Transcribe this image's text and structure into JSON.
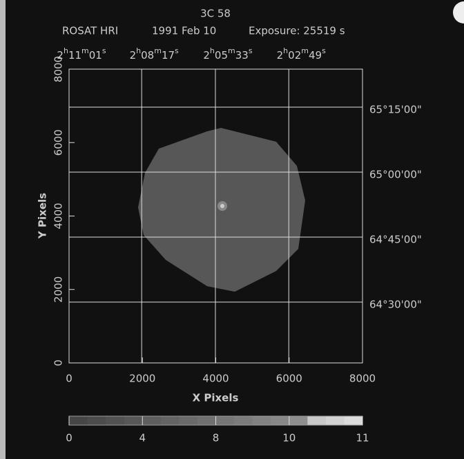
{
  "chart_data": {
    "type": "image",
    "title": "3C 58",
    "subtitle": [
      "ROSAT  HRI",
      "1991 Feb 10",
      "Exposure:  25519 s"
    ],
    "xlabel": "X Pixels",
    "ylabel": "Y Pixels",
    "xlim": [
      0,
      8000
    ],
    "ylim": [
      0,
      8000
    ],
    "xticks": [
      0,
      2000,
      4000,
      6000,
      8000
    ],
    "yticks": [
      0,
      2000,
      4000,
      6000,
      8000
    ],
    "ra_ticks": [
      {
        "value": 0,
        "label": "2h11m01s"
      },
      {
        "value": 1980,
        "label": "2h08m17s"
      },
      {
        "value": 3990,
        "label": "2h05m33s"
      },
      {
        "value": 5990,
        "label": "2h02m49s"
      }
    ],
    "dec_ticks": [
      {
        "value": 6965,
        "label": "65°15'00\""
      },
      {
        "value": 5195,
        "label": "65°00'00\""
      },
      {
        "value": 3426,
        "label": "64°45'00\""
      },
      {
        "value": 1656,
        "label": "64°30'00\""
      }
    ],
    "colorbar_ticks": [
      0,
      4,
      8,
      10,
      11
    ],
    "grid": true
  }
}
